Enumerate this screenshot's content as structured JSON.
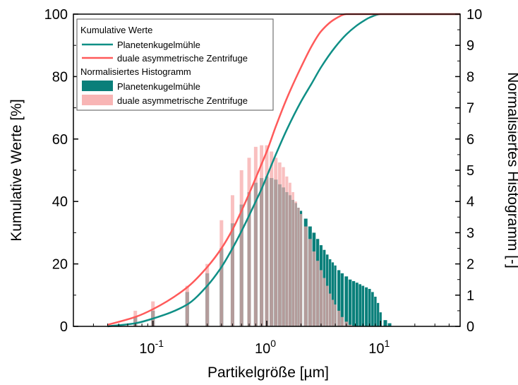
{
  "chart_data": {
    "type": "line",
    "title": "",
    "xlabel": "Partikelgröße [µm]",
    "ylabel_left": "Kumulative Werte [%]",
    "ylabel_right": "Normalisiertes Histogramm [-]",
    "x_scale": "log",
    "xlim": [
      0.02,
      50
    ],
    "ylim_left": [
      0,
      100
    ],
    "ylim_right": [
      0,
      10
    ],
    "x_ticks": [
      {
        "value": 0.1,
        "base": "10",
        "exp": "-1"
      },
      {
        "value": 1,
        "base": "10",
        "exp": "0"
      },
      {
        "value": 10,
        "base": "10",
        "exp": "1"
      }
    ],
    "y_ticks_left": [
      "0",
      "20",
      "40",
      "60",
      "80",
      "100"
    ],
    "y_ticks_right": [
      "0",
      "1",
      "2",
      "3",
      "4",
      "5",
      "6",
      "7",
      "8",
      "9",
      "10"
    ],
    "grid": false,
    "legend_position": "top-left",
    "legend": {
      "group_cumulative": "Kumulative Werte",
      "group_histogram": "Normalisiertes Histogramm"
    },
    "colors": {
      "planetenkugelmuehle": "#0f8f86",
      "zentrifuge": "#ff5a5a",
      "hist_planeten": "#0a7f7a",
      "hist_zentrifuge": "#f7a8a8"
    },
    "cumulative": [
      {
        "name": "Planetenkugelmühle",
        "x": [
          0.04,
          0.07,
          0.1,
          0.2,
          0.3,
          0.4,
          0.5,
          0.6,
          0.7,
          0.8,
          0.9,
          1.0,
          1.2,
          1.5,
          2.0,
          2.5,
          3.0,
          4.0,
          5.0,
          6.0,
          7.0,
          8.0,
          10.0,
          15.0,
          50.0
        ],
        "y": [
          0,
          1,
          2.5,
          7,
          13,
          19,
          25,
          30.5,
          35.5,
          40,
          44,
          48,
          55,
          63,
          72,
          78,
          83,
          89.5,
          93.5,
          96,
          97.7,
          98.9,
          100,
          100,
          100
        ]
      },
      {
        "name": "duale asymmetrische Zentrifuge",
        "x": [
          0.04,
          0.07,
          0.1,
          0.2,
          0.3,
          0.4,
          0.5,
          0.6,
          0.7,
          0.8,
          0.9,
          1.0,
          1.2,
          1.5,
          2.0,
          2.5,
          3.0,
          4.0,
          5.0,
          6.0,
          50.0
        ],
        "y": [
          0.5,
          3,
          5.5,
          12.5,
          19,
          25,
          31,
          37,
          42.5,
          47.5,
          52,
          56,
          64,
          73,
          83,
          90,
          94.5,
          98.5,
          100,
          100,
          100
        ]
      }
    ],
    "histogram": [
      {
        "name": "Planetenkugelmühle",
        "x": [
          0.07,
          0.1,
          0.2,
          0.3,
          0.4,
          0.5,
          0.6,
          0.7,
          0.8,
          0.9,
          1.0,
          1.1,
          1.2,
          1.3,
          1.4,
          1.5,
          1.6,
          1.7,
          1.8,
          1.9,
          2.0,
          2.2,
          2.4,
          2.6,
          2.8,
          3.0,
          3.2,
          3.4,
          3.6,
          3.8,
          4.0,
          4.3,
          4.6,
          5.0,
          5.4,
          5.8,
          6.2,
          6.6,
          7.0,
          7.5,
          8.0,
          8.5,
          9.0,
          9.5,
          10.0,
          11.0,
          12.0
        ],
        "y": [
          0.3,
          0.5,
          1.1,
          1.7,
          2.5,
          3.3,
          3.9,
          4.3,
          4.6,
          4.75,
          4.8,
          4.75,
          4.7,
          4.55,
          4.45,
          4.3,
          4.2,
          4.05,
          3.95,
          3.8,
          3.7,
          3.45,
          3.2,
          3.0,
          2.8,
          2.6,
          2.45,
          2.3,
          2.15,
          2.05,
          1.95,
          1.8,
          1.7,
          1.6,
          1.5,
          1.45,
          1.4,
          1.35,
          1.3,
          1.25,
          1.2,
          1.1,
          0.95,
          0.75,
          0.45,
          0.2,
          0.1
        ]
      },
      {
        "name": "duale asymmetrische Zentrifuge",
        "x": [
          0.07,
          0.1,
          0.2,
          0.3,
          0.4,
          0.5,
          0.6,
          0.7,
          0.8,
          0.9,
          1.0,
          1.1,
          1.2,
          1.3,
          1.4,
          1.5,
          1.6,
          1.7,
          1.8,
          1.9,
          2.0,
          2.2,
          2.4,
          2.6,
          2.8,
          3.0,
          3.2,
          3.4,
          3.6,
          3.8,
          4.0,
          4.3,
          4.6,
          5.0,
          5.4,
          5.8
        ],
        "y": [
          0.5,
          0.8,
          1.3,
          2.0,
          3.4,
          4.2,
          5.0,
          5.4,
          5.75,
          5.8,
          5.8,
          5.6,
          5.4,
          5.25,
          5.1,
          4.8,
          4.6,
          4.3,
          4.0,
          3.8,
          3.6,
          3.2,
          2.8,
          2.4,
          2.1,
          1.8,
          1.55,
          1.3,
          1.05,
          0.85,
          0.7,
          0.5,
          0.3,
          0.15,
          0.05,
          0.02
        ]
      }
    ]
  }
}
